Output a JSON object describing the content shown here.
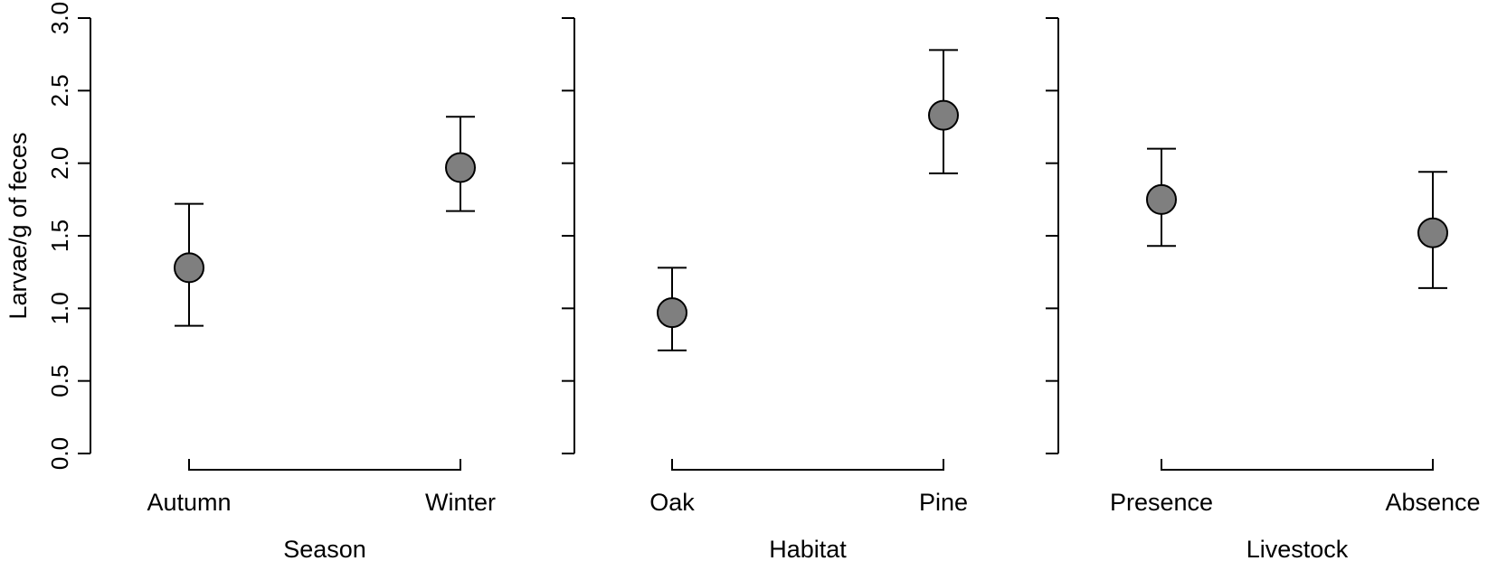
{
  "chart_data": {
    "type": "scatter",
    "y_axis": {
      "label": "Larvae/g of feces",
      "ylim": [
        0,
        3
      ],
      "ticks": [
        "0.0",
        "0.5",
        "1.0",
        "1.5",
        "2.0",
        "2.5",
        "3.0"
      ],
      "tick_values": [
        0,
        0.5,
        1,
        1.5,
        2,
        2.5,
        3
      ]
    },
    "panels": [
      {
        "xlabel": "Season",
        "categories": [
          "Autumn",
          "Winter"
        ],
        "values": [
          1.28,
          1.97
        ],
        "lower": [
          0.88,
          1.67
        ],
        "upper": [
          1.72,
          2.32
        ]
      },
      {
        "xlabel": "Habitat",
        "categories": [
          "Oak",
          "Pine"
        ],
        "values": [
          0.97,
          2.33
        ],
        "lower": [
          0.71,
          1.93
        ],
        "upper": [
          1.28,
          2.78
        ]
      },
      {
        "xlabel": "Livestock",
        "categories": [
          "Presence",
          "Absence"
        ],
        "values": [
          1.75,
          1.52
        ],
        "lower": [
          1.43,
          1.14
        ],
        "upper": [
          2.1,
          1.94
        ]
      }
    ],
    "point_color": "#7f7f7f",
    "line_color": "#000000",
    "grid": false
  }
}
